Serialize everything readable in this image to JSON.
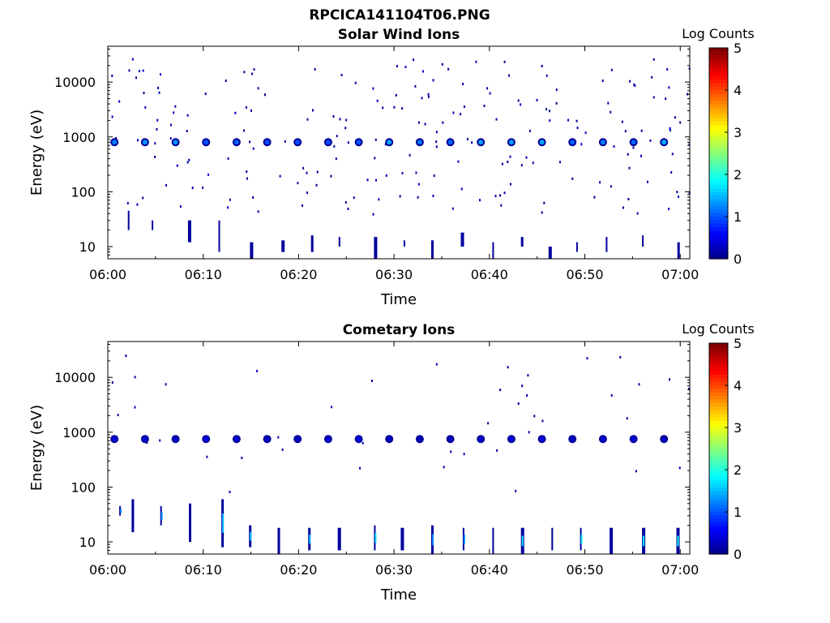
{
  "figure": {
    "title": "RPCICA141104T06.PNG"
  },
  "colorscale": {
    "name": "jet",
    "stops": [
      "#00007f",
      "#0000ff",
      "#00ffff",
      "#ffff00",
      "#ff0000",
      "#7f0000"
    ]
  },
  "chart_data": [
    {
      "type": "heatmap",
      "title": "Solar Wind Ions",
      "xlabel": "Time",
      "ylabel": "Energy (eV)",
      "yscale": "log",
      "xlim": [
        "06:00",
        "07:01"
      ],
      "ylim": [
        6,
        45000
      ],
      "xticks": [
        "06:00",
        "06:10",
        "06:20",
        "06:30",
        "06:40",
        "06:50",
        "07:00"
      ],
      "yticks": [
        10,
        100,
        1000,
        10000
      ],
      "yticklabels": [
        "10",
        "100",
        "1000",
        "10000"
      ],
      "colorbar": {
        "label": "Log Counts",
        "range": [
          0,
          5
        ],
        "ticks": [
          "0",
          "1",
          "2",
          "3",
          "4",
          "5"
        ]
      },
      "main_band": {
        "energy_eV": 800,
        "period_min": 3.2,
        "start_min": 0.7,
        "log_counts": 1.2
      },
      "low_energy_bursts": [
        {
          "t": 2.1,
          "lo": 20,
          "hi": 45
        },
        {
          "t": 4.6,
          "lo": 20,
          "hi": 30
        },
        {
          "t": 8.4,
          "lo": 12,
          "hi": 30
        },
        {
          "t": 11.6,
          "lo": 8,
          "hi": 30
        },
        {
          "t": 14.9,
          "lo": 6,
          "hi": 12
        },
        {
          "t": 18.2,
          "lo": 8,
          "hi": 13
        },
        {
          "t": 21.3,
          "lo": 8,
          "hi": 16
        },
        {
          "t": 24.2,
          "lo": 10,
          "hi": 15
        },
        {
          "t": 27.9,
          "lo": 6,
          "hi": 15
        },
        {
          "t": 31.0,
          "lo": 10,
          "hi": 13
        },
        {
          "t": 33.9,
          "lo": 6,
          "hi": 13
        },
        {
          "t": 37.0,
          "lo": 10,
          "hi": 18
        },
        {
          "t": 40.3,
          "lo": 6,
          "hi": 12
        },
        {
          "t": 43.3,
          "lo": 10,
          "hi": 15
        },
        {
          "t": 46.2,
          "lo": 6,
          "hi": 10
        },
        {
          "t": 49.1,
          "lo": 8,
          "hi": 12
        },
        {
          "t": 52.2,
          "lo": 8,
          "hi": 15
        },
        {
          "t": 56.0,
          "lo": 10,
          "hi": 16
        },
        {
          "t": 59.7,
          "lo": 6,
          "hi": 12
        }
      ]
    },
    {
      "type": "heatmap",
      "title": "Cometary Ions",
      "xlabel": "Time",
      "ylabel": "Energy (eV)",
      "yscale": "log",
      "xlim": [
        "06:00",
        "07:01"
      ],
      "ylim": [
        6,
        45000
      ],
      "xticks": [
        "06:00",
        "06:10",
        "06:20",
        "06:30",
        "06:40",
        "06:50",
        "07:00"
      ],
      "yticks": [
        10,
        100,
        1000,
        10000
      ],
      "yticklabels": [
        "10",
        "100",
        "1000",
        "10000"
      ],
      "colorbar": {
        "label": "Log Counts",
        "range": [
          0,
          5
        ],
        "ticks": [
          "0",
          "1",
          "2",
          "3",
          "4",
          "5"
        ]
      },
      "main_band": {
        "energy_eV": 750,
        "period_min": 3.2,
        "start_min": 0.7,
        "log_counts": 0.4
      },
      "low_energy_bursts": [
        {
          "t": 1.2,
          "lo": 30,
          "hi": 45
        },
        {
          "t": 2.5,
          "lo": 15,
          "hi": 60
        },
        {
          "t": 5.5,
          "lo": 20,
          "hi": 45
        },
        {
          "t": 8.5,
          "lo": 10,
          "hi": 50
        },
        {
          "t": 11.9,
          "lo": 8,
          "hi": 60
        },
        {
          "t": 14.8,
          "lo": 8,
          "hi": 20
        },
        {
          "t": 17.8,
          "lo": 6,
          "hi": 18
        },
        {
          "t": 21.0,
          "lo": 7,
          "hi": 18
        },
        {
          "t": 24.1,
          "lo": 7,
          "hi": 18
        },
        {
          "t": 27.9,
          "lo": 7,
          "hi": 20
        },
        {
          "t": 30.7,
          "lo": 7,
          "hi": 18
        },
        {
          "t": 33.9,
          "lo": 6,
          "hi": 20
        },
        {
          "t": 37.2,
          "lo": 7,
          "hi": 18
        },
        {
          "t": 40.3,
          "lo": 6,
          "hi": 18
        },
        {
          "t": 43.3,
          "lo": 6,
          "hi": 18
        },
        {
          "t": 46.5,
          "lo": 7,
          "hi": 18
        },
        {
          "t": 49.5,
          "lo": 7,
          "hi": 18
        },
        {
          "t": 52.6,
          "lo": 6,
          "hi": 18
        },
        {
          "t": 56.0,
          "lo": 6,
          "hi": 18
        },
        {
          "t": 59.6,
          "lo": 6,
          "hi": 18
        }
      ]
    }
  ]
}
